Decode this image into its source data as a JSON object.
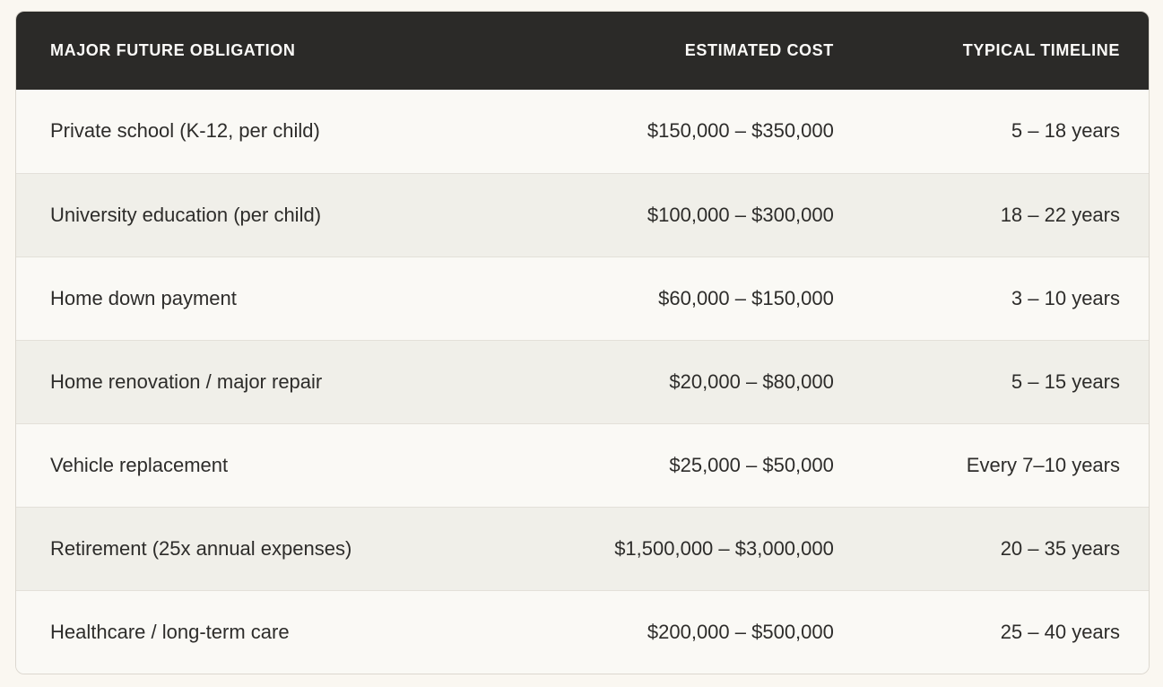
{
  "table": {
    "columns": [
      {
        "label": "MAJOR FUTURE OBLIGATION",
        "align": "left"
      },
      {
        "label": "ESTIMATED COST",
        "align": "right"
      },
      {
        "label": "TYPICAL TIMELINE",
        "align": "right"
      }
    ],
    "rows": [
      {
        "obligation": "Private school (K-12, per child)",
        "cost": "$150,000 – $350,000",
        "timeline": "5 – 18 years"
      },
      {
        "obligation": "University education (per child)",
        "cost": "$100,000 – $300,000",
        "timeline": "18 – 22 years"
      },
      {
        "obligation": "Home down payment",
        "cost": "$60,000 – $150,000",
        "timeline": "3 – 10 years"
      },
      {
        "obligation": "Home renovation / major repair",
        "cost": "$20,000 – $80,000",
        "timeline": "5 – 15 years"
      },
      {
        "obligation": "Vehicle replacement",
        "cost": "$25,000 – $50,000",
        "timeline": "Every 7–10 years"
      },
      {
        "obligation": "Retirement (25x annual expenses)",
        "cost": "$1,500,000 – $3,000,000",
        "timeline": "20 – 35 years"
      },
      {
        "obligation": "Healthcare / long-term care",
        "cost": "$200,000 – $500,000",
        "timeline": "25 – 40 years"
      }
    ]
  },
  "colors": {
    "page_background": "#faf7f1",
    "header_background": "#2b2a28",
    "header_text": "#fbfaf8",
    "row_odd_background": "#faf9f5",
    "row_even_background": "#f0efe9",
    "row_separator": "#e3e0d9",
    "body_text": "#2d2c2a",
    "card_border": "#dcd8d0"
  }
}
